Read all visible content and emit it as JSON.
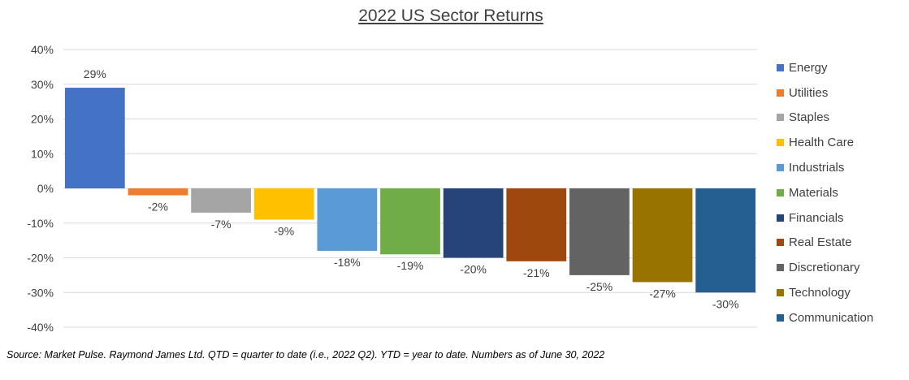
{
  "chart_data": {
    "type": "bar",
    "title": "2022 US Sector Returns",
    "xlabel": "",
    "ylabel": "",
    "ylim": [
      -40,
      40
    ],
    "yticks": [
      40,
      30,
      20,
      10,
      0,
      -10,
      -20,
      -30,
      -40
    ],
    "ytick_labels": [
      "40%",
      "30%",
      "20%",
      "10%",
      "0%",
      "-10%",
      "-20%",
      "-30%",
      "-40%"
    ],
    "grid": true,
    "legend_position": "right",
    "categories": [
      "Energy",
      "Utilities",
      "Staples",
      "Health Care",
      "Industrials",
      "Materials",
      "Financials",
      "Real Estate",
      "Discretionary",
      "Technology",
      "Communication"
    ],
    "values": [
      29,
      -2,
      -7,
      -9,
      -18,
      -19,
      -20,
      -21,
      -25,
      -27,
      -30
    ],
    "data_labels": [
      "29%",
      "-2%",
      "-7%",
      "-9%",
      "-18%",
      "-19%",
      "-20%",
      "-21%",
      "-25%",
      "-27%",
      "-30%"
    ],
    "colors": [
      "#4472C4",
      "#ED7D31",
      "#A5A5A5",
      "#FFC000",
      "#5B9BD5",
      "#70AD47",
      "#264478",
      "#9E480E",
      "#636363",
      "#997300",
      "#255E91"
    ]
  },
  "footer": {
    "source": "Source: Market Pulse. Raymond James Ltd. QTD = quarter to date (i.e., 2022 Q2). YTD = year to date. Numbers as of June 30, 2022"
  }
}
